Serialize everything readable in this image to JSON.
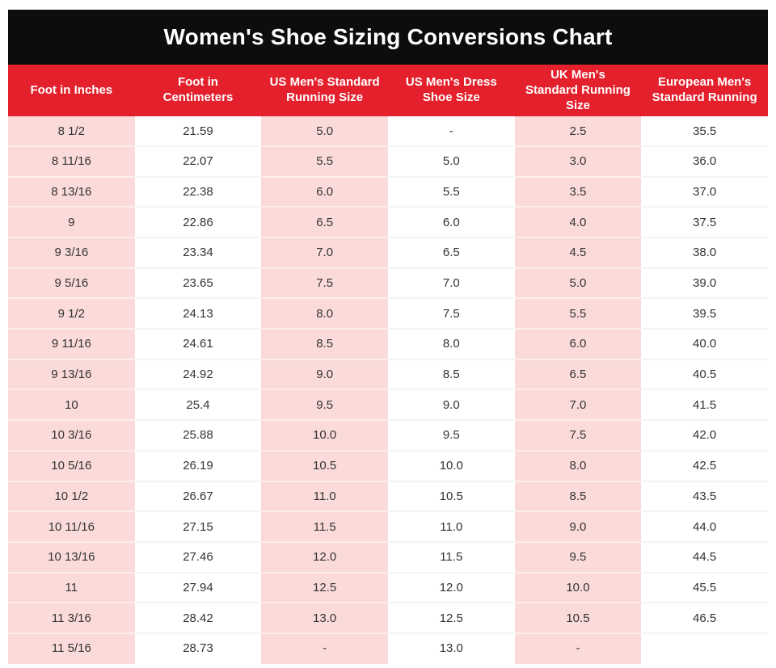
{
  "title": "Women's Shoe Sizing Conversions Chart",
  "colors": {
    "title_bar_background": "#0d0d0d",
    "header_background": "#e4202c",
    "header_text": "#ffffff",
    "pink_column": "#fbdbda",
    "white_column": "#ffffff",
    "cell_text": "#333333"
  },
  "chart_data": {
    "type": "table",
    "title": "Women's Shoe Sizing Conversions Chart",
    "columns": [
      "Foot in Inches",
      "Foot in Centimeters",
      "US Men's Standard Running Size",
      "US Men's Dress Shoe Size",
      "UK Men's Standard Running Size",
      "European Men's Standard Running"
    ],
    "rows": [
      [
        "8 1/2",
        "21.59",
        "5.0",
        "-",
        "2.5",
        "35.5"
      ],
      [
        "8 11/16",
        "22.07",
        "5.5",
        "5.0",
        "3.0",
        "36.0"
      ],
      [
        "8 13/16",
        "22.38",
        "6.0",
        "5.5",
        "3.5",
        "37.0"
      ],
      [
        "9",
        "22.86",
        "6.5",
        "6.0",
        "4.0",
        "37.5"
      ],
      [
        "9 3/16",
        "23.34",
        "7.0",
        "6.5",
        "4.5",
        "38.0"
      ],
      [
        "9 5/16",
        "23.65",
        "7.5",
        "7.0",
        "5.0",
        "39.0"
      ],
      [
        "9 1/2",
        "24.13",
        "8.0",
        "7.5",
        "5.5",
        "39.5"
      ],
      [
        "9 11/16",
        "24.61",
        "8.5",
        "8.0",
        "6.0",
        "40.0"
      ],
      [
        "9 13/16",
        "24.92",
        "9.0",
        "8.5",
        "6.5",
        "40.5"
      ],
      [
        "10",
        "25.4",
        "9.5",
        "9.0",
        "7.0",
        "41.5"
      ],
      [
        "10 3/16",
        "25.88",
        "10.0",
        "9.5",
        "7.5",
        "42.0"
      ],
      [
        "10 5/16",
        "26.19",
        "10.5",
        "10.0",
        "8.0",
        "42.5"
      ],
      [
        "10 1/2",
        "26.67",
        "11.0",
        "10.5",
        "8.5",
        "43.5"
      ],
      [
        "10 11/16",
        "27.15",
        "11.5",
        "11.0",
        "9.0",
        "44.0"
      ],
      [
        "10 13/16",
        "27.46",
        "12.0",
        "11.5",
        "9.5",
        "44.5"
      ],
      [
        "11",
        "27.94",
        "12.5",
        "12.0",
        "10.0",
        "45.5"
      ],
      [
        "11 3/16",
        "28.42",
        "13.0",
        "12.5",
        "10.5",
        "46.5"
      ],
      [
        "11 5/16",
        "28.73",
        "-",
        "13.0",
        "-",
        ""
      ]
    ]
  }
}
